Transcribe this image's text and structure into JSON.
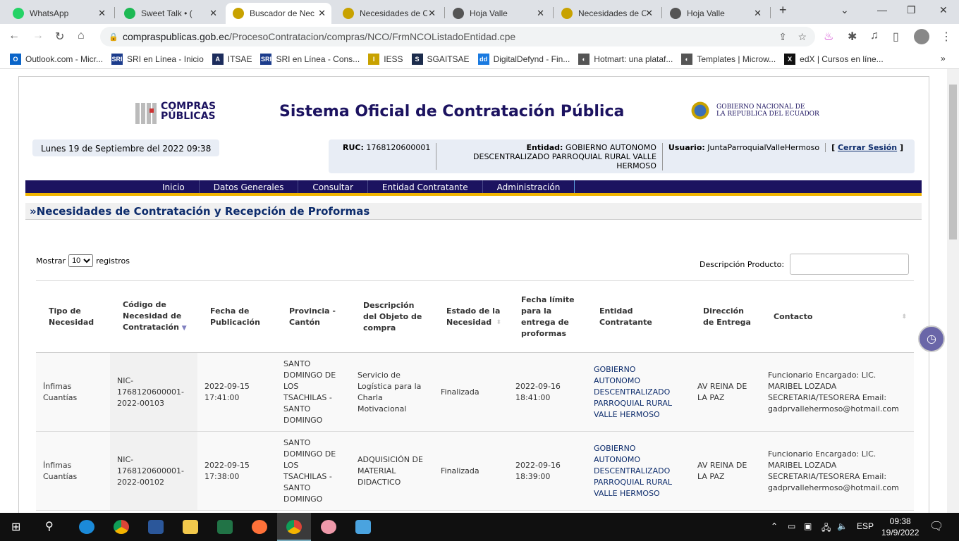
{
  "browser": {
    "tabs": [
      {
        "title": "WhatsApp",
        "color": "#25d366"
      },
      {
        "title": "Sweet Talk • (",
        "color": "#1db954"
      },
      {
        "title": "Buscador de Nec",
        "color": "#c8a200"
      },
      {
        "title": "Necesidades de C",
        "color": "#c8a200"
      },
      {
        "title": "Hoja Valle",
        "color": "#555"
      },
      {
        "title": "Necesidades de C",
        "color": "#c8a200"
      },
      {
        "title": "Hoja Valle",
        "color": "#555"
      }
    ],
    "active_tab": 2,
    "url_host": "compraspublicas.gob.ec",
    "url_path": "/ProcesoContratacion/compras/NCO/FrmNCOListadoEntidad.cpe",
    "bookmarks": [
      {
        "label": "Outlook.com - Micr...",
        "icon": "O",
        "color": "#0a64c8"
      },
      {
        "label": "SRI en Línea - Inicio",
        "icon": "SRI",
        "color": "#1c3c8c"
      },
      {
        "label": "ITSAE",
        "icon": "A",
        "color": "#1c2c5c"
      },
      {
        "label": "SRI en Línea - Cons...",
        "icon": "SRI",
        "color": "#1c3c8c"
      },
      {
        "label": "IESS",
        "icon": "I",
        "color": "#c8a200"
      },
      {
        "label": "SGAITSAE",
        "icon": "S",
        "color": "#1c2c4c"
      },
      {
        "label": "DigitalDefynd - Fin...",
        "icon": "dd",
        "color": "#1a7ae0"
      },
      {
        "label": "Hotmart: una plataf...",
        "icon": "◐",
        "color": "#555"
      },
      {
        "label": "Templates | Microw...",
        "icon": "◐",
        "color": "#555"
      },
      {
        "label": "edX | Cursos en líne...",
        "icon": "X",
        "color": "#111"
      }
    ]
  },
  "header": {
    "logo_top": "COMPRAS",
    "logo_bottom": "PÚBLICAS",
    "title": "Sistema Oficial de Contratación Pública",
    "gob_line1": "GOBIERNO NACIONAL DE",
    "gob_line2": "LA REPUBLICA DEL ECUADOR"
  },
  "session": {
    "date": "Lunes 19 de Septiembre del 2022 09:38",
    "ruc_label": "RUC:",
    "ruc": "1768120600001",
    "entidad_label": "Entidad:",
    "entidad": "GOBIERNO AUTONOMO DESCENTRALIZADO PARROQUIAL RURAL VALLE HERMOSO",
    "usuario_label": "Usuario:",
    "usuario": "JuntaParroquialValleHermoso",
    "logout": "Cerrar Sesión"
  },
  "menu": [
    "Inicio",
    "Datos Generales",
    "Consultar",
    "Entidad Contratante",
    "Administración"
  ],
  "section_title": "»Necesidades de Contratación y Recepción de Proformas",
  "controls": {
    "show_label": "Mostrar",
    "show_value": "10",
    "records_label": "registros",
    "search_label": "Descripción Producto:",
    "search_value": ""
  },
  "table": {
    "headers": [
      "Tipo de Necesidad",
      "Código de Necesidad de Contratación",
      "Fecha de Publicación",
      "Provincia - Cantón",
      "Descripción del Objeto de compra",
      "Estado de la Necesidad",
      "Fecha límite para la entrega de proformas",
      "Entidad Contratante",
      "Dirección de Entrega",
      "Contacto"
    ],
    "rows": [
      [
        "Ínfimas Cuantías",
        "NIC-1768120600001-2022-00103",
        "2022-09-15 17:41:00",
        "SANTO DOMINGO DE LOS TSACHILAS - SANTO DOMINGO",
        "Servicio de Logística para la Charla Motivacional",
        "Finalizada",
        "2022-09-16 18:41:00",
        "GOBIERNO AUTONOMO DESCENTRALIZADO PARROQUIAL RURAL VALLE HERMOSO",
        "AV REINA DE LA PAZ",
        "Funcionario Encargado: LIC. MARIBEL LOZADA SECRETARIA/TESORERA Email: gadprvallehermoso@hotmail.com"
      ],
      [
        "Ínfimas Cuantías",
        "NIC-1768120600001-2022-00102",
        "2022-09-15 17:38:00",
        "SANTO DOMINGO DE LOS TSACHILAS - SANTO DOMINGO",
        "ADQUISICIÓN DE MATERIAL DIDACTICO",
        "Finalizada",
        "2022-09-16 18:39:00",
        "GOBIERNO AUTONOMO DESCENTRALIZADO PARROQUIAL RURAL VALLE HERMOSO",
        "AV REINA DE LA PAZ",
        "Funcionario Encargado: LIC. MARIBEL LOZADA SECRETARIA/TESORERA Email: gadprvallehermoso@hotmail.com"
      ]
    ]
  },
  "taskbar": {
    "language": "ESP",
    "time": "09:38",
    "date": "19/9/2022"
  }
}
